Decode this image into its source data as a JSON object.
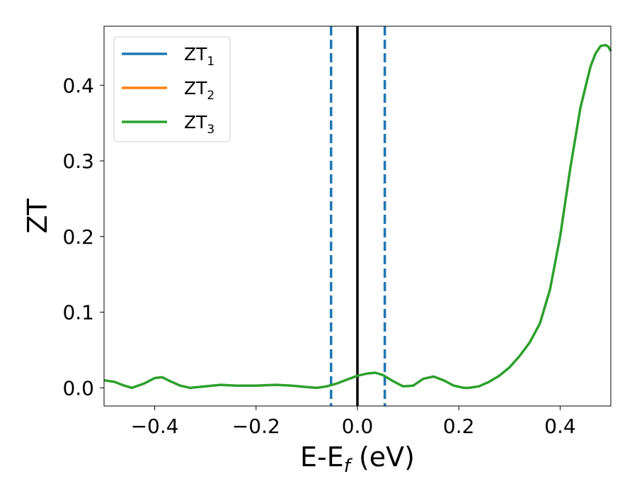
{
  "chart_data": {
    "type": "line",
    "xlabel_main": "E-E",
    "xlabel_sub": "f",
    "xlabel_unit": " (eV)",
    "ylabel": "ZT",
    "xlim": [
      -0.5,
      0.5
    ],
    "ylim": [
      -0.024,
      0.478
    ],
    "xticks": [
      -0.4,
      -0.2,
      0.0,
      0.2,
      0.4
    ],
    "xtick_labels": [
      "−0.4",
      "−0.2",
      "0.0",
      "0.2",
      "0.4"
    ],
    "yticks": [
      0.0,
      0.1,
      0.2,
      0.3,
      0.4
    ],
    "ytick_labels": [
      "0.0",
      "0.1",
      "0.2",
      "0.3",
      "0.4"
    ],
    "grid": false,
    "legend_position": "top-left",
    "vlines": [
      {
        "x": -0.052,
        "style": "dashed",
        "color": "#1f77b4"
      },
      {
        "x": 0.0,
        "style": "solid",
        "color": "#000000"
      },
      {
        "x": 0.054,
        "style": "dashed",
        "color": "#1f77b4"
      }
    ],
    "series": [
      {
        "name_main": "ZT",
        "name_sub": "1",
        "color": "#1f77b4",
        "x": [],
        "y": []
      },
      {
        "name_main": "ZT",
        "name_sub": "2",
        "color": "#ff7f0e",
        "x": [],
        "y": []
      },
      {
        "name_main": "ZT",
        "name_sub": "3",
        "color": "#2ca02c",
        "x": [
          -0.5,
          -0.48,
          -0.46,
          -0.445,
          -0.42,
          -0.4,
          -0.385,
          -0.37,
          -0.35,
          -0.33,
          -0.3,
          -0.27,
          -0.24,
          -0.2,
          -0.16,
          -0.13,
          -0.1,
          -0.08,
          -0.06,
          -0.04,
          -0.02,
          0.0,
          0.02,
          0.035,
          0.05,
          0.07,
          0.09,
          0.11,
          0.13,
          0.15,
          0.17,
          0.19,
          0.21,
          0.22,
          0.24,
          0.26,
          0.28,
          0.3,
          0.32,
          0.34,
          0.36,
          0.38,
          0.4,
          0.42,
          0.44,
          0.46,
          0.47,
          0.48,
          0.49,
          0.495,
          0.5
        ],
        "y": [
          0.01,
          0.008,
          0.003,
          0.0,
          0.006,
          0.013,
          0.014,
          0.009,
          0.003,
          0.0,
          0.002,
          0.004,
          0.003,
          0.003,
          0.004,
          0.003,
          0.001,
          0.0,
          0.002,
          0.006,
          0.011,
          0.016,
          0.019,
          0.02,
          0.017,
          0.009,
          0.002,
          0.003,
          0.012,
          0.015,
          0.01,
          0.003,
          0.0,
          0.0,
          0.002,
          0.008,
          0.016,
          0.027,
          0.042,
          0.06,
          0.085,
          0.13,
          0.2,
          0.29,
          0.37,
          0.425,
          0.442,
          0.452,
          0.453,
          0.451,
          0.445
        ]
      }
    ]
  }
}
